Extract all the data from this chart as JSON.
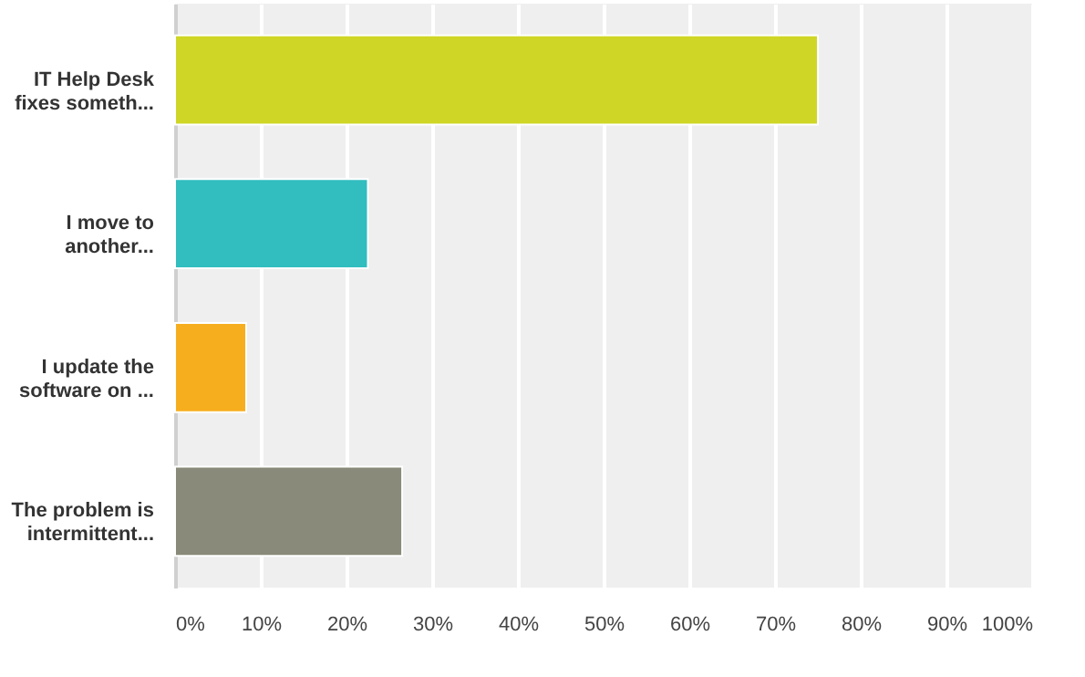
{
  "chart_data": {
    "type": "bar",
    "orientation": "horizontal",
    "categories": [
      "IT Help Desk\nfixes someth...",
      "I move to\nanother...",
      "I update the\nsoftware on ...",
      "The problem is\nintermittent..."
    ],
    "values": [
      75,
      22.5,
      8.3,
      26.5
    ],
    "colors": [
      "#cfd626",
      "#32bdbf",
      "#f7ae1e",
      "#898a79"
    ],
    "xlim": [
      0,
      100
    ],
    "xticks": [
      {
        "value": 0,
        "label": "0%"
      },
      {
        "value": 10,
        "label": "10%"
      },
      {
        "value": 20,
        "label": "20%"
      },
      {
        "value": 30,
        "label": "30%"
      },
      {
        "value": 40,
        "label": "40%"
      },
      {
        "value": 50,
        "label": "50%"
      },
      {
        "value": 60,
        "label": "60%"
      },
      {
        "value": 70,
        "label": "70%"
      },
      {
        "value": 80,
        "label": "80%"
      },
      {
        "value": 90,
        "label": "90%"
      },
      {
        "value": 100,
        "label": "100%"
      }
    ],
    "grid": "x"
  }
}
